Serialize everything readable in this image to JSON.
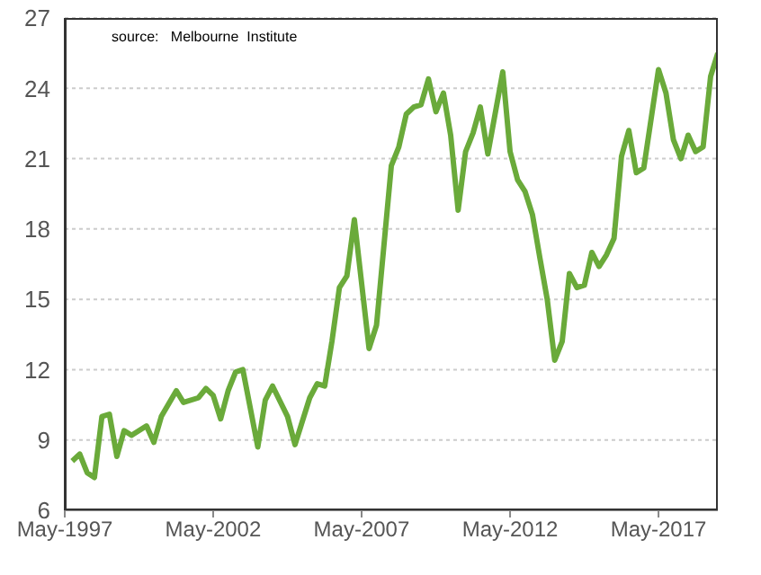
{
  "chart_data": {
    "type": "line",
    "annotations": [
      "source:   Melbourne  Institute"
    ],
    "x": [
      "1997-08",
      "1997-11",
      "1998-02",
      "1998-05",
      "1998-08",
      "1998-11",
      "1999-02",
      "1999-05",
      "1999-08",
      "2000-02",
      "2000-05",
      "2000-08",
      "2001-02",
      "2001-05",
      "2001-11",
      "2002-02",
      "2002-05",
      "2002-08",
      "2002-11",
      "2003-02",
      "2003-05",
      "2003-11",
      "2004-02",
      "2004-05",
      "2004-11",
      "2005-02",
      "2005-08",
      "2005-11",
      "2006-02",
      "2006-05",
      "2006-08",
      "2006-11",
      "2007-02",
      "2007-08",
      "2007-11",
      "2008-05",
      "2008-08",
      "2008-11",
      "2009-02",
      "2009-05",
      "2009-08",
      "2009-11",
      "2010-02",
      "2010-05",
      "2010-08",
      "2010-11",
      "2011-02",
      "2011-05",
      "2011-08",
      "2012-02",
      "2012-05",
      "2012-08",
      "2012-11",
      "2013-02",
      "2013-05",
      "2013-08",
      "2013-11",
      "2014-02",
      "2014-05",
      "2014-08",
      "2014-11",
      "2015-02",
      "2015-05",
      "2015-08",
      "2015-11",
      "2016-02",
      "2016-05",
      "2016-08",
      "2016-11",
      "2017-05",
      "2017-08",
      "2017-11",
      "2018-02",
      "2018-05",
      "2018-08",
      "2018-11",
      "2019-02",
      "2019-05"
    ],
    "series": [
      {
        "color": "#6aaa3a",
        "values": [
          8.1,
          8.4,
          7.6,
          7.4,
          10.0,
          10.1,
          8.3,
          9.4,
          9.2,
          9.6,
          8.9,
          10.0,
          11.1,
          10.6,
          10.8,
          11.2,
          10.9,
          9.9,
          11.1,
          11.9,
          12.0,
          8.7,
          10.7,
          11.3,
          10.0,
          8.8,
          10.8,
          11.4,
          11.3,
          13.2,
          15.5,
          16.0,
          18.4,
          12.9,
          13.9,
          20.7,
          21.5,
          22.9,
          23.2,
          23.3,
          24.4,
          23.0,
          23.8,
          22.0,
          18.8,
          21.3,
          22.1,
          23.2,
          21.2,
          24.7,
          21.3,
          20.1,
          19.6,
          18.6,
          16.8,
          15.0,
          12.4,
          13.2,
          16.1,
          15.5,
          15.6,
          17.0,
          16.4,
          16.9,
          17.6,
          21.1,
          22.2,
          20.4,
          20.6,
          24.8,
          23.8,
          21.8,
          21.0,
          22.0,
          21.3,
          21.5,
          24.5,
          25.5
        ]
      }
    ],
    "xlim": [
      "1997-05",
      "2019-05"
    ],
    "xticks": [
      {
        "value": "1997-05",
        "label": "May-1997"
      },
      {
        "value": "2002-05",
        "label": "May-2002"
      },
      {
        "value": "2007-05",
        "label": "May-2007"
      },
      {
        "value": "2012-05",
        "label": "May-2012"
      },
      {
        "value": "2017-05",
        "label": "May-2017"
      }
    ],
    "ylim": [
      6,
      27
    ],
    "yticks": [
      6,
      9,
      12,
      15,
      18,
      21,
      24,
      27
    ],
    "grid": "y",
    "legend": false,
    "marker": "none",
    "line_style": "solid"
  }
}
